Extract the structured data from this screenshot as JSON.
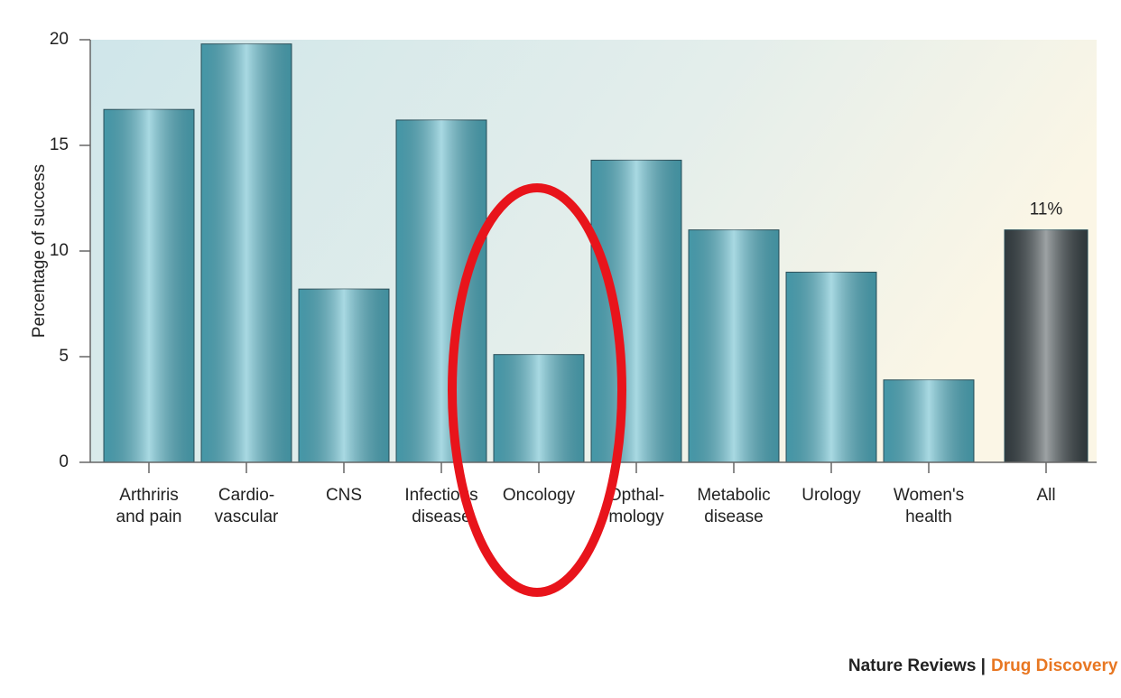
{
  "chart_data": {
    "type": "bar",
    "y_label": "Percentage of success",
    "categories": [
      [
        "Arthriris",
        "and pain"
      ],
      [
        "Cardio-",
        "vascular"
      ],
      [
        "CNS"
      ],
      [
        "Infectious",
        "disease"
      ],
      [
        "Oncology"
      ],
      [
        "Opthal-",
        "mology"
      ],
      [
        "Metabolic",
        "disease"
      ],
      [
        "Urology"
      ],
      [
        "Women's",
        "health"
      ],
      [
        "All"
      ]
    ],
    "values": [
      16.7,
      19.8,
      8.2,
      16.2,
      5.1,
      14.3,
      11.0,
      9.0,
      3.9,
      11.0
    ],
    "value_labels": [
      null,
      null,
      null,
      null,
      null,
      null,
      null,
      null,
      null,
      "11%"
    ],
    "colors": [
      "#52b3c6",
      "#52b3c6",
      "#52b3c6",
      "#52b3c6",
      "#52b3c6",
      "#52b3c6",
      "#52b3c6",
      "#52b3c6",
      "#52b3c6",
      "#3b4549"
    ],
    "ylim": [
      0,
      20
    ],
    "yticks": [
      0,
      5,
      10,
      15,
      20
    ],
    "grid": false
  },
  "footer": {
    "left": "Nature Reviews |",
    "right": "Drug Discovery"
  }
}
